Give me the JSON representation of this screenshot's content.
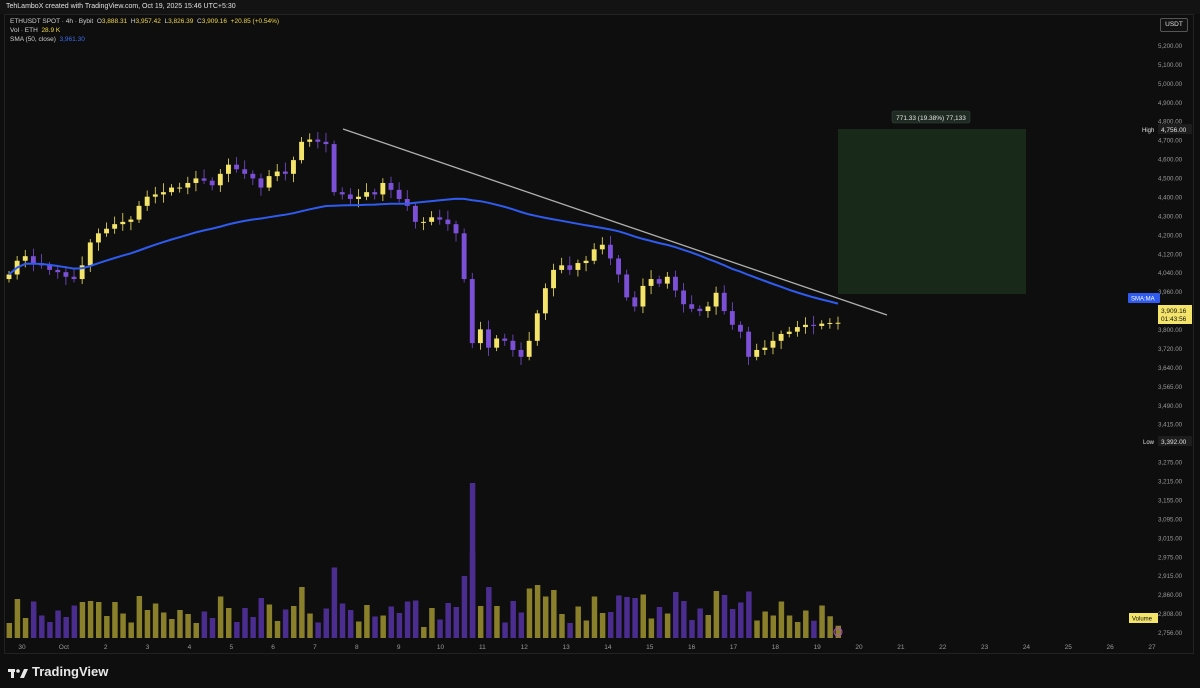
{
  "header": {
    "attribution": "TehLamboX created with TradingView.com, Oct 19, 2025 15:46 UTC+5:30"
  },
  "legend": {
    "symbol": "ETHUSDT SPOT · 4h · Bybit",
    "o_label": "O",
    "o_val": "3,888.31",
    "h_label": "H",
    "h_val": "3,957.42",
    "l_label": "L",
    "l_val": "3,826.39",
    "c_label": "C",
    "c_val": "3,909.16",
    "change": "+20.85 (+0.54%)",
    "vol_label": "Vol · ETH",
    "vol_val": "28.9 K",
    "sma_label": "SMA (50, close)",
    "sma_val": "3,961.30"
  },
  "currency": "USDT",
  "brand": "TradingView",
  "colors": {
    "bull": "#f4e46a",
    "bear": "#7b4fd6",
    "sma": "#2f5bf0",
    "trendline": "#b0b0b0",
    "target_box": "#1a2e1c",
    "bull_volume": "#8a7f2a",
    "bear_volume": "#4a2d8f"
  },
  "chart_data": {
    "type": "candlestick",
    "timeframe": "4h",
    "y_axis": {
      "ticks": [
        "5,200.00",
        "5,100.00",
        "5,000.00",
        "4,900.00",
        "4,800.00",
        "4,700.00",
        "4,600.00",
        "4,500.00",
        "4,400.00",
        "4,300.00",
        "4,200.00",
        "4,120.00",
        "4,040.00",
        "3,960.00",
        "3,880.00",
        "3,800.00",
        "3,720.00",
        "3,640.00",
        "3,565.00",
        "3,490.00",
        "3,415.00",
        "3,335.00",
        "3,275.00",
        "3,215.00",
        "3,155.00",
        "3,095.00",
        "3,015.00",
        "2,975.00",
        "2,915.00",
        "2,860.00",
        "2,808.00",
        "2,756.00"
      ]
    },
    "x_axis": {
      "ticks": [
        "30",
        "Oct",
        "2",
        "3",
        "4",
        "5",
        "6",
        "7",
        "8",
        "9",
        "10",
        "11",
        "12",
        "13",
        "14",
        "15",
        "16",
        "17",
        "18",
        "19",
        "20",
        "21",
        "22",
        "23",
        "24",
        "25",
        "26",
        "27"
      ]
    },
    "price_labels": {
      "high_label": "High",
      "high_value": "4,756.00",
      "low_label": "Low",
      "low_value": "3,392.00",
      "sma_tag": "SMA:MA",
      "last_price": "3,909.16",
      "countdown": "01:43:56",
      "volume_tag": "Volume"
    },
    "measure_label": "771.33 (19.38%) 77,133",
    "closes": [
      4120,
      4180,
      4200,
      4170,
      4160,
      4140,
      4130,
      4110,
      4100,
      4160,
      4260,
      4300,
      4320,
      4340,
      4350,
      4360,
      4420,
      4460,
      4470,
      4480,
      4500,
      4500,
      4520,
      4540,
      4530,
      4510,
      4560,
      4600,
      4580,
      4560,
      4540,
      4500,
      4550,
      4570,
      4560,
      4620,
      4700,
      4710,
      4700,
      4690,
      4480,
      4470,
      4450,
      4460,
      4480,
      4470,
      4520,
      4490,
      4450,
      4420,
      4350,
      4350,
      4370,
      4360,
      4340,
      4300,
      4100,
      3820,
      3880,
      3800,
      3840,
      3830,
      3790,
      3760,
      3830,
      3950,
      4060,
      4140,
      4160,
      4140,
      4170,
      4180,
      4230,
      4250,
      4190,
      4120,
      4020,
      3980,
      4070,
      4100,
      4080,
      4110,
      4050,
      3990,
      3970,
      3960,
      3980,
      4040,
      3960,
      3900,
      3870,
      3760,
      3790,
      3800,
      3830,
      3860,
      3870,
      3890,
      3900,
      3895,
      3905,
      3908,
      3909
    ]
  }
}
